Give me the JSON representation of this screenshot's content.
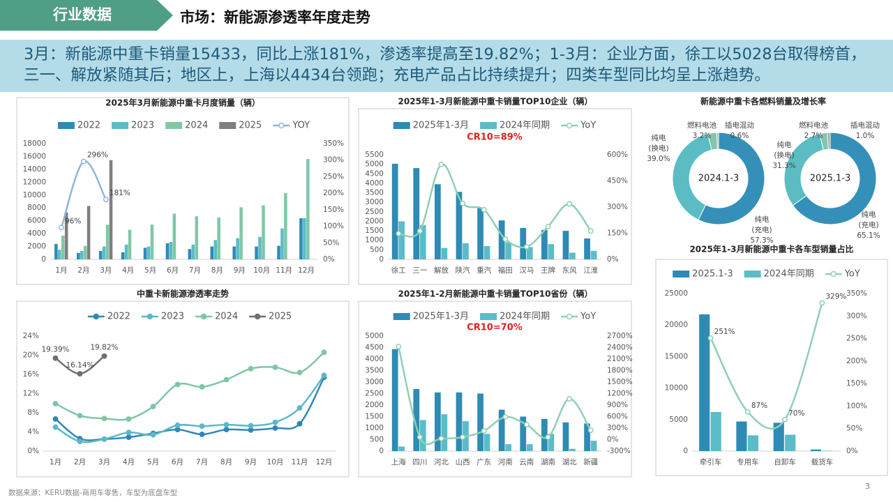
{
  "header": {
    "section": "行业数据",
    "title": "市场：新能源渗透率年度走势"
  },
  "summary": "3月：新能源中重卡销量15433，同比上涨181%，渗透率提高至19.82%；1-3月：企业方面，徐工以5028台取得榜首，三一、解放紧随其后；地区上，上海以4434台领跑；充电产品占比持续提升；四类车型同比均呈上涨趋势。",
  "source": "数据来源：KERU数据-商用车零售，车型为底盘车型",
  "page_number": "3",
  "chart_data": [
    {
      "type": "combo",
      "title": "2025年3月新能源中重卡月度销量（辆）",
      "categories": [
        "1月",
        "2月",
        "3月",
        "4月",
        "5月",
        "6月",
        "7月",
        "8月",
        "9月",
        "10月",
        "11月",
        "12月"
      ],
      "series": [
        {
          "name": "2022",
          "type": "bar",
          "color": "#2f8ab5",
          "values": [
            2400,
            1000,
            1300,
            1100,
            1800,
            2500,
            1600,
            2000,
            2000,
            2000,
            2100,
            6400
          ]
        },
        {
          "name": "2023",
          "type": "bar",
          "color": "#5bbcc8",
          "values": [
            1500,
            1300,
            2000,
            2300,
            2000,
            2700,
            2300,
            3000,
            3300,
            3500,
            4800,
            6400
          ]
        },
        {
          "name": "2024",
          "type": "bar",
          "color": "#7ec8a6",
          "values": [
            3700,
            2100,
            5400,
            4600,
            5400,
            7100,
            6700,
            6500,
            8100,
            8400,
            10300,
            15600
          ]
        },
        {
          "name": "2025",
          "type": "bar",
          "color": "#7f7f7f",
          "values": [
            7300,
            8300,
            15433,
            null,
            null,
            null,
            null,
            null,
            null,
            null,
            null,
            null
          ]
        },
        {
          "name": "YOY",
          "type": "line",
          "axis": "y2",
          "color": "#8fb5d9",
          "values": [
            96,
            296,
            181,
            null,
            null,
            null,
            null,
            null,
            null,
            null,
            null,
            null
          ],
          "value_labels": [
            "96%",
            "296%",
            "181%",
            null,
            null,
            null,
            null,
            null,
            null,
            null,
            null,
            null
          ]
        }
      ],
      "ylim": [
        0,
        18000
      ],
      "yticks": [
        0,
        2000,
        4000,
        6000,
        8000,
        10000,
        12000,
        14000,
        16000,
        18000
      ],
      "y2lim": [
        0,
        350
      ],
      "y2ticks": [
        {
          "value": 0,
          "label": "0%"
        },
        {
          "value": 50,
          "label": "50%"
        },
        {
          "value": 100,
          "label": "100%"
        },
        {
          "value": 150,
          "label": "150%"
        },
        {
          "value": 200,
          "label": "200%"
        },
        {
          "value": 250,
          "label": "250%"
        },
        {
          "value": 300,
          "label": "300%"
        },
        {
          "value": 350,
          "label": "350%"
        }
      ]
    },
    {
      "type": "combo",
      "title": "2025年1-3月新能源中重卡销量TOP10企业（辆）",
      "annotation": "CR10=89%",
      "categories": [
        "徐工",
        "三一",
        "解放",
        "陕汽",
        "重汽",
        "福田",
        "汉马",
        "王牌",
        "东风",
        "江淮"
      ],
      "series": [
        {
          "name": "2025年1-3月",
          "type": "bar",
          "color": "#2f8ab5",
          "values": [
            5028,
            4800,
            3950,
            3550,
            2700,
            2050,
            1650,
            1550,
            1500,
            1100
          ]
        },
        {
          "name": "2024年同期",
          "type": "bar",
          "color": "#5bbcc8",
          "values": [
            2000,
            1800,
            600,
            850,
            700,
            900,
            650,
            800,
            350,
            450
          ]
        },
        {
          "name": "YoY",
          "type": "line",
          "axis": "y2",
          "color": "#8fcfb2",
          "values": [
            148,
            163,
            545,
            321,
            285,
            116,
            72,
            188,
            318,
            163
          ]
        }
      ],
      "ylim": [
        0,
        5500
      ],
      "yticks": [
        0,
        500,
        1000,
        1500,
        2000,
        2500,
        3000,
        3500,
        4000,
        4500,
        5000,
        5500
      ],
      "y2lim": [
        0,
        600
      ],
      "y2ticks": [
        {
          "value": 0,
          "label": "0%"
        },
        {
          "value": 150,
          "label": "150%"
        },
        {
          "value": 300,
          "label": "300%"
        },
        {
          "value": 450,
          "label": "450%"
        },
        {
          "value": 600,
          "label": "600%"
        }
      ]
    },
    {
      "type": "donut",
      "title": "新能源中重卡各燃料销量及增长率",
      "categories": [
        "纯电\n(充电)",
        "纯电\n(换电)",
        "燃料电池",
        "插电混动"
      ],
      "colors": [
        "#3490b8",
        "#5bbcc4",
        "#7fc8a8",
        "#a6a6a6"
      ],
      "series": [
        {
          "name": "2024.1-3",
          "values": [
            57.3,
            39.0,
            3.2,
            0.6
          ],
          "value_labels": [
            "57.3%",
            "39.0%",
            "3.2%",
            "0.6%"
          ]
        },
        {
          "name": "2025.1-3",
          "values": [
            65.1,
            31.3,
            2.7,
            1.0
          ],
          "value_labels": [
            "65.1%",
            "31.3%",
            "2.7%",
            "1.0%"
          ]
        }
      ]
    },
    {
      "type": "line",
      "title": "中重卡新能源渗透率走势",
      "categories": [
        "1月",
        "2月",
        "3月",
        "4月",
        "5月",
        "6月",
        "7月",
        "8月",
        "9月",
        "10月",
        "11月",
        "12月"
      ],
      "series": [
        {
          "name": "2022",
          "color": "#2f86b8",
          "values": [
            6.7,
            2.6,
            2.5,
            2.9,
            3.7,
            4.5,
            3.5,
            4.5,
            4.4,
            4.8,
            5.7,
            15.4
          ]
        },
        {
          "name": "2023",
          "color": "#5bb8c8",
          "values": [
            5.0,
            2.0,
            2.5,
            3.9,
            3.4,
            5.4,
            5.2,
            5.5,
            5.3,
            6.0,
            9.0,
            15.8
          ]
        },
        {
          "name": "2024",
          "color": "#7ec6a4",
          "values": [
            9.9,
            7.4,
            6.8,
            6.7,
            9.3,
            13.9,
            13.4,
            14.9,
            17.2,
            17.5,
            16.4,
            20.6
          ]
        },
        {
          "name": "2025",
          "color": "#707070",
          "values": [
            19.39,
            16.14,
            19.82,
            null,
            null,
            null,
            null,
            null,
            null,
            null,
            null,
            null
          ],
          "value_labels": [
            "19.39%",
            "16.14%",
            "19.82%",
            null,
            null,
            null,
            null,
            null,
            null,
            null,
            null,
            null
          ]
        }
      ],
      "ylim": [
        0,
        24
      ],
      "yticks": [
        {
          "value": 0,
          "label": "0%"
        },
        {
          "value": 4,
          "label": "4%"
        },
        {
          "value": 8,
          "label": "8%"
        },
        {
          "value": 12,
          "label": "12%"
        },
        {
          "value": 16,
          "label": "16%"
        },
        {
          "value": 20,
          "label": "20%"
        },
        {
          "value": 24,
          "label": "24%"
        }
      ]
    },
    {
      "type": "combo",
      "title": "2025年1-2月新能源中重卡销量TOP10省份（辆）",
      "annotation": "CR10=70%",
      "categories": [
        "上海",
        "四川",
        "河北",
        "山西",
        "广东",
        "河南",
        "云南",
        "湖南",
        "湖北",
        "新疆"
      ],
      "series": [
        {
          "name": "2025年1-3月",
          "type": "bar",
          "color": "#2f8ab5",
          "values": [
            4434,
            2700,
            2550,
            2550,
            2500,
            1800,
            1500,
            1400,
            1250,
            1200
          ]
        },
        {
          "name": "2024年同期",
          "type": "bar",
          "color": "#5bbcc8",
          "values": [
            200,
            1350,
            1600,
            1300,
            750,
            300,
            300,
            750,
            100,
            450
          ]
        },
        {
          "name": "YoY",
          "type": "line",
          "axis": "y2",
          "color": "#8fcfb2",
          "values": [
            2427,
            64,
            27,
            64,
            227,
            591,
            391,
            64,
            1064,
            245
          ]
        }
      ],
      "ylim": [
        0,
        5000
      ],
      "yticks": [
        0,
        500,
        1000,
        1500,
        2000,
        2500,
        3000,
        3500,
        4000,
        4500,
        5000
      ],
      "y2lim": [
        -300,
        2700
      ],
      "y2ticks": [
        {
          "value": -300,
          "label": "-300%"
        },
        {
          "value": 0,
          "label": "0%"
        },
        {
          "value": 300,
          "label": "300%"
        },
        {
          "value": 600,
          "label": "600%"
        },
        {
          "value": 900,
          "label": "900%"
        },
        {
          "value": 1200,
          "label": "1200%"
        },
        {
          "value": 1500,
          "label": "1500%"
        },
        {
          "value": 1800,
          "label": "1800%"
        },
        {
          "value": 2100,
          "label": "2100%"
        },
        {
          "value": 2400,
          "label": "2400%"
        },
        {
          "value": 2700,
          "label": "2700%"
        }
      ]
    },
    {
      "type": "combo",
      "title": "2025年1-3月新能源中重卡各车型销量占比",
      "categories": [
        "牵引车",
        "专用车",
        "自卸车",
        "载货车"
      ],
      "series": [
        {
          "name": "2025.1-3",
          "type": "bar",
          "color": "#2f8ab5",
          "values": [
            21700,
            4700,
            4500,
            250
          ]
        },
        {
          "name": "2024年同期",
          "type": "bar",
          "color": "#5bbcc8",
          "values": [
            6200,
            2500,
            2600,
            60
          ]
        },
        {
          "name": "YoY",
          "type": "line",
          "axis": "y2",
          "color": "#8fcfb2",
          "values": [
            251,
            87,
            70,
            329
          ],
          "value_labels": [
            "251%",
            "87%",
            "70%",
            "329%"
          ]
        }
      ],
      "ylim": [
        0,
        25000
      ],
      "yticks": [
        0,
        5000,
        10000,
        15000,
        20000,
        25000
      ],
      "y2lim": [
        0,
        350
      ],
      "y2ticks": [
        {
          "value": 0,
          "label": "0%"
        },
        {
          "value": 50,
          "label": "50%"
        },
        {
          "value": 100,
          "label": "100%"
        },
        {
          "value": 150,
          "label": "150%"
        },
        {
          "value": 200,
          "label": "200%"
        },
        {
          "value": 250,
          "label": "250%"
        },
        {
          "value": 300,
          "label": "300%"
        },
        {
          "value": 350,
          "label": "350%"
        }
      ]
    }
  ]
}
